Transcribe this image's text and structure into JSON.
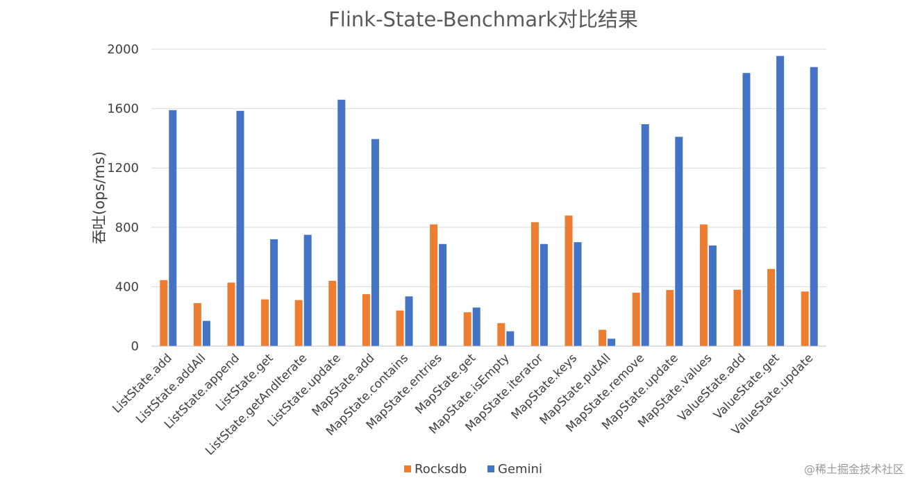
{
  "chart_data": {
    "type": "bar",
    "title": "Flink-State-Benchmark对比结果",
    "xlabel": "",
    "ylabel": "吞吐(ops/ms)",
    "ylim": [
      0,
      2000
    ],
    "yticks": [
      0,
      400,
      800,
      1200,
      1600,
      2000
    ],
    "grid": true,
    "legend_position": "bottom",
    "categories": [
      "ListState.add",
      "ListState.addAll",
      "ListState.append",
      "ListState.get",
      "ListState.getAndIterate",
      "ListState.update",
      "MapState.add",
      "MapState.contains",
      "MapState.entries",
      "MapState.get",
      "MapState.isEmpty",
      "MapState.iterator",
      "MapState.keys",
      "MapState.putAll",
      "MapState.remove",
      "MapState.update",
      "MapState.values",
      "ValueState.add",
      "ValueState.get",
      "ValueState.update"
    ],
    "series": [
      {
        "name": "Rocksdb",
        "color": "#ed7d31",
        "values": [
          445,
          290,
          428,
          315,
          310,
          440,
          350,
          240,
          820,
          228,
          155,
          835,
          880,
          110,
          360,
          378,
          820,
          380,
          520,
          368
        ]
      },
      {
        "name": "Gemini",
        "color": "#4472c4",
        "values": [
          1590,
          170,
          1585,
          720,
          750,
          1660,
          1395,
          335,
          688,
          260,
          100,
          688,
          700,
          50,
          1495,
          1410,
          678,
          1840,
          1955,
          1880
        ]
      }
    ]
  },
  "watermark": "@稀土掘金技术社区"
}
